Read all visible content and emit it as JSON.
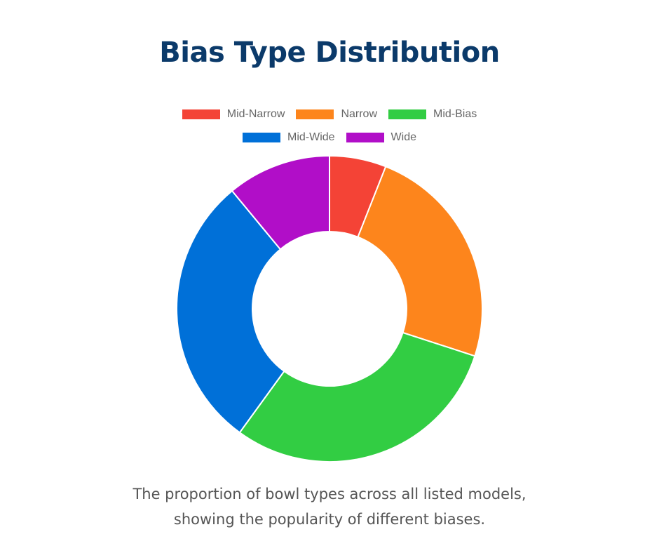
{
  "title": "Bias Type Distribution",
  "caption": "The proportion of bowl types across all listed models, showing the popularity of different biases.",
  "colors": {
    "Mid-Narrow": "#f44336",
    "Narrow": "#fd851c",
    "Mid-Bias": "#32cd43",
    "Mid-Wide": "#0070d8",
    "Wide": "#b10ec8",
    "title": "#0b3a6a",
    "caption": "#555555"
  },
  "chart_data": {
    "type": "pie",
    "variant": "doughnut",
    "categories": [
      "Mid-Narrow",
      "Narrow",
      "Mid-Bias",
      "Mid-Wide",
      "Wide"
    ],
    "values": [
      6,
      24,
      30,
      29,
      11
    ],
    "legend_position": "top",
    "title": "Bias Type Distribution"
  },
  "legend": {
    "rows": [
      [
        {
          "label": "Mid-Narrow",
          "color": "#f44336"
        },
        {
          "label": "Narrow",
          "color": "#fd851c"
        },
        {
          "label": "Mid-Bias",
          "color": "#32cd43"
        }
      ],
      [
        {
          "label": "Mid-Wide",
          "color": "#0070d8"
        },
        {
          "label": "Wide",
          "color": "#b10ec8"
        }
      ]
    ]
  }
}
